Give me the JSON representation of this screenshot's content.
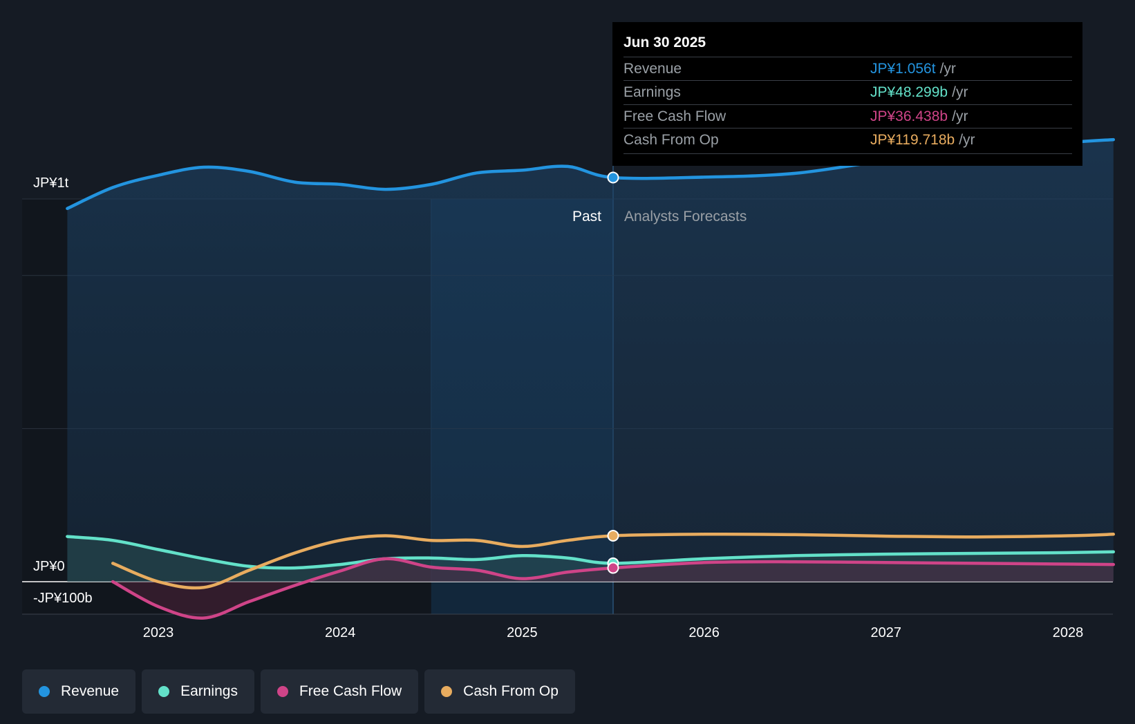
{
  "chart_data": {
    "type": "line",
    "currency_unit": "JP¥b",
    "y_axis_labels": [
      "JP¥1t",
      "JP¥0",
      "-JP¥100b"
    ],
    "ylim": [
      -200,
      1200
    ],
    "x_ticks": [
      "2023",
      "2024",
      "2025",
      "2026",
      "2027",
      "2028"
    ],
    "xlim": [
      2022.3,
      2028.25
    ],
    "past_label": "Past",
    "forecast_label": "Analysts Forecasts",
    "past_end": 2025.5,
    "highlight_start": 2024.5,
    "series": [
      {
        "name": "Revenue",
        "color": "#2394df",
        "area": true,
        "points": [
          [
            2022.5,
            975
          ],
          [
            2022.75,
            1030
          ],
          [
            2023.0,
            1062
          ],
          [
            2023.25,
            1083
          ],
          [
            2023.5,
            1072
          ],
          [
            2023.75,
            1044
          ],
          [
            2024.0,
            1038
          ],
          [
            2024.25,
            1025
          ],
          [
            2024.5,
            1038
          ],
          [
            2024.75,
            1068
          ],
          [
            2025.0,
            1075
          ],
          [
            2025.25,
            1085
          ],
          [
            2025.5,
            1056
          ],
          [
            2026.0,
            1057
          ],
          [
            2026.5,
            1067
          ],
          [
            2027.0,
            1100
          ],
          [
            2027.5,
            1122
          ],
          [
            2028.0,
            1147
          ],
          [
            2028.25,
            1155
          ]
        ]
      },
      {
        "name": "Earnings",
        "color": "#63e1c9",
        "area": true,
        "points": [
          [
            2022.5,
            118
          ],
          [
            2022.75,
            108
          ],
          [
            2023.0,
            84
          ],
          [
            2023.25,
            60
          ],
          [
            2023.5,
            40
          ],
          [
            2023.75,
            36
          ],
          [
            2024.0,
            45
          ],
          [
            2024.25,
            60
          ],
          [
            2024.5,
            62
          ],
          [
            2024.75,
            58
          ],
          [
            2025.0,
            68
          ],
          [
            2025.25,
            62
          ],
          [
            2025.5,
            48
          ],
          [
            2026.0,
            60
          ],
          [
            2026.5,
            68
          ],
          [
            2027.0,
            72
          ],
          [
            2027.5,
            74
          ],
          [
            2028.0,
            76
          ],
          [
            2028.25,
            78
          ]
        ]
      },
      {
        "name": "Free Cash Flow",
        "color": "#cf4488",
        "area": true,
        "points": [
          [
            2022.75,
            0
          ],
          [
            2023.0,
            -65
          ],
          [
            2023.25,
            -95
          ],
          [
            2023.5,
            -52
          ],
          [
            2023.75,
            -10
          ],
          [
            2024.0,
            28
          ],
          [
            2024.25,
            60
          ],
          [
            2024.5,
            38
          ],
          [
            2024.75,
            30
          ],
          [
            2025.0,
            8
          ],
          [
            2025.25,
            25
          ],
          [
            2025.5,
            36
          ],
          [
            2026.0,
            50
          ],
          [
            2026.5,
            52
          ],
          [
            2027.0,
            50
          ],
          [
            2027.5,
            48
          ],
          [
            2028.0,
            46
          ],
          [
            2028.25,
            45
          ]
        ]
      },
      {
        "name": "Cash From Op",
        "color": "#e8ac5f",
        "area": false,
        "points": [
          [
            2022.75,
            48
          ],
          [
            2023.0,
            0
          ],
          [
            2023.25,
            -15
          ],
          [
            2023.5,
            30
          ],
          [
            2023.75,
            75
          ],
          [
            2024.0,
            108
          ],
          [
            2024.25,
            120
          ],
          [
            2024.5,
            108
          ],
          [
            2024.75,
            108
          ],
          [
            2025.0,
            92
          ],
          [
            2025.25,
            108
          ],
          [
            2025.5,
            120
          ],
          [
            2026.0,
            124
          ],
          [
            2026.5,
            123
          ],
          [
            2027.0,
            119
          ],
          [
            2027.5,
            117
          ],
          [
            2028.0,
            120
          ],
          [
            2028.25,
            124
          ]
        ]
      }
    ],
    "marker_x": 2025.5
  },
  "tooltip": {
    "date": "Jun 30 2025",
    "rows": [
      {
        "label": "Revenue",
        "value": "JP¥1.056t",
        "unit": "/yr",
        "color": "#2394df"
      },
      {
        "label": "Earnings",
        "value": "JP¥48.299b",
        "unit": "/yr",
        "color": "#63e1c9"
      },
      {
        "label": "Free Cash Flow",
        "value": "JP¥36.438b",
        "unit": "/yr",
        "color": "#cf4488"
      },
      {
        "label": "Cash From Op",
        "value": "JP¥119.718b",
        "unit": "/yr",
        "color": "#e8ac5f"
      }
    ]
  },
  "legend": [
    {
      "label": "Revenue",
      "color": "#2394df"
    },
    {
      "label": "Earnings",
      "color": "#63e1c9"
    },
    {
      "label": "Free Cash Flow",
      "color": "#cf4488"
    },
    {
      "label": "Cash From Op",
      "color": "#e8ac5f"
    }
  ]
}
